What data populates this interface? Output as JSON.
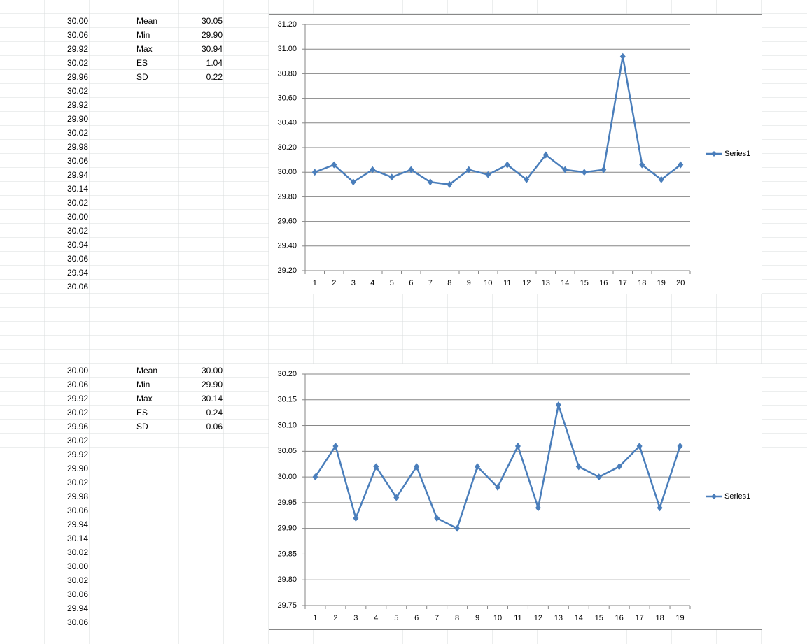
{
  "sheet": {
    "blocks": [
      {
        "column": [
          "30.00",
          "30.06",
          "29.92",
          "30.02",
          "29.96",
          "30.02",
          "29.92",
          "29.90",
          "30.02",
          "29.98",
          "30.06",
          "29.94",
          "30.14",
          "30.02",
          "30.00",
          "30.02",
          "30.94",
          "30.06",
          "29.94",
          "30.06"
        ],
        "stats": [
          [
            "Mean",
            "30.05"
          ],
          [
            "Min",
            "29.90"
          ],
          [
            "Max",
            "30.94"
          ],
          [
            "ES",
            "1.04"
          ],
          [
            "SD",
            "0.22"
          ]
        ]
      },
      {
        "column": [
          "30.00",
          "30.06",
          "29.92",
          "30.02",
          "29.96",
          "30.02",
          "29.92",
          "29.90",
          "30.02",
          "29.98",
          "30.06",
          "29.94",
          "30.14",
          "30.02",
          "30.00",
          "30.02",
          "30.06",
          "29.94",
          "30.06"
        ],
        "stats": [
          [
            "Mean",
            "30.00"
          ],
          [
            "Min",
            "29.90"
          ],
          [
            "Max",
            "30.14"
          ],
          [
            "ES",
            "0.24"
          ],
          [
            "SD",
            "0.06"
          ]
        ]
      }
    ]
  },
  "chart_data": [
    {
      "type": "line",
      "categories": [
        1,
        2,
        3,
        4,
        5,
        6,
        7,
        8,
        9,
        10,
        11,
        12,
        13,
        14,
        15,
        16,
        17,
        18,
        19,
        20
      ],
      "series": [
        {
          "name": "Series1",
          "color": "#4a7ebb",
          "values": [
            30.0,
            30.06,
            29.92,
            30.02,
            29.96,
            30.02,
            29.92,
            29.9,
            30.02,
            29.98,
            30.06,
            29.94,
            30.14,
            30.02,
            30.0,
            30.02,
            30.94,
            30.06,
            29.94,
            30.06
          ]
        }
      ],
      "ylim": [
        29.2,
        31.2
      ],
      "yticks": [
        {
          "value": 29.2,
          "label": "29.20"
        },
        {
          "value": 29.4,
          "label": "29.40"
        },
        {
          "value": 29.6,
          "label": "29.60"
        },
        {
          "value": 29.8,
          "label": "29.80"
        },
        {
          "value": 30.0,
          "label": "30.00"
        },
        {
          "value": 30.2,
          "label": "30.20"
        },
        {
          "value": 30.4,
          "label": "30.40"
        },
        {
          "value": 30.6,
          "label": "30.60"
        },
        {
          "value": 30.8,
          "label": "30.80"
        },
        {
          "value": 31.0,
          "label": "31.00"
        },
        {
          "value": 31.2,
          "label": "31.20"
        }
      ],
      "grid": true,
      "legend": "right"
    },
    {
      "type": "line",
      "categories": [
        1,
        2,
        3,
        4,
        5,
        6,
        7,
        8,
        9,
        10,
        11,
        12,
        13,
        14,
        15,
        16,
        17,
        18,
        19
      ],
      "series": [
        {
          "name": "Series1",
          "color": "#4a7ebb",
          "values": [
            30.0,
            30.06,
            29.92,
            30.02,
            29.96,
            30.02,
            29.92,
            29.9,
            30.02,
            29.98,
            30.06,
            29.94,
            30.14,
            30.02,
            30.0,
            30.02,
            30.06,
            29.94,
            30.06
          ]
        }
      ],
      "ylim": [
        29.75,
        30.2
      ],
      "yticks": [
        {
          "value": 29.75,
          "label": "29.75"
        },
        {
          "value": 29.8,
          "label": "29.80"
        },
        {
          "value": 29.85,
          "label": "29.85"
        },
        {
          "value": 29.9,
          "label": "29.90"
        },
        {
          "value": 29.95,
          "label": "29.95"
        },
        {
          "value": 30.0,
          "label": "30.00"
        },
        {
          "value": 30.05,
          "label": "30.05"
        },
        {
          "value": 30.1,
          "label": "30.10"
        },
        {
          "value": 30.15,
          "label": "30.15"
        },
        {
          "value": 30.2,
          "label": "30.20"
        }
      ],
      "grid": true,
      "legend": "right"
    }
  ]
}
